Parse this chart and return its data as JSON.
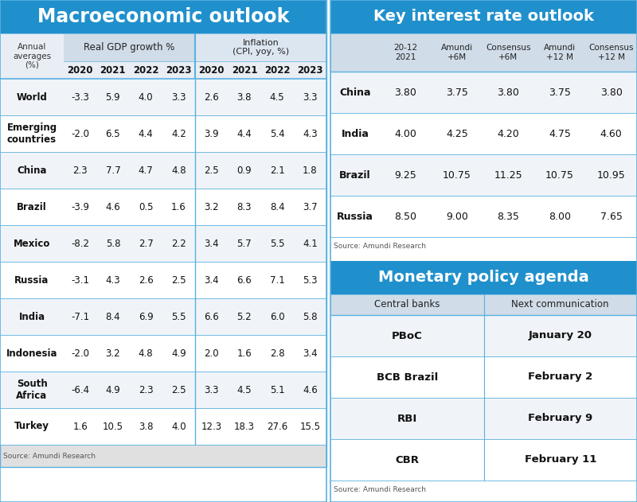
{
  "title_left": "Macroeconomic outlook",
  "title_right": "Key interest rate outlook",
  "monetary_title": "Monetary policy agenda",
  "title_bg": "#2090cc",
  "title_text_color": "#ffffff",
  "header_bg": "#d0dce8",
  "row_bg_odd": "#f0f4f8",
  "row_bg_even": "#ffffff",
  "border_color": "#5ab0e0",
  "sep_color": "#5ab0e0",
  "text_dark": "#111111",
  "text_gray": "#444444",
  "source_color": "#555555",
  "macro_rows": [
    [
      "World",
      "-3.3",
      "5.9",
      "4.0",
      "3.3",
      "2.6",
      "3.8",
      "4.5",
      "3.3"
    ],
    [
      "Emerging\ncountries",
      "-2.0",
      "6.5",
      "4.4",
      "4.2",
      "3.9",
      "4.4",
      "5.4",
      "4.3"
    ],
    [
      "China",
      "2.3",
      "7.7",
      "4.7",
      "4.8",
      "2.5",
      "0.9",
      "2.1",
      "1.8"
    ],
    [
      "Brazil",
      "-3.9",
      "4.6",
      "0.5",
      "1.6",
      "3.2",
      "8.3",
      "8.4",
      "3.7"
    ],
    [
      "Mexico",
      "-8.2",
      "5.8",
      "2.7",
      "2.2",
      "3.4",
      "5.7",
      "5.5",
      "4.1"
    ],
    [
      "Russia",
      "-3.1",
      "4.3",
      "2.6",
      "2.5",
      "3.4",
      "6.6",
      "7.1",
      "5.3"
    ],
    [
      "India",
      "-7.1",
      "8.4",
      "6.9",
      "5.5",
      "6.6",
      "5.2",
      "6.0",
      "5.8"
    ],
    [
      "Indonesia",
      "-2.0",
      "3.2",
      "4.8",
      "4.9",
      "2.0",
      "1.6",
      "2.8",
      "3.4"
    ],
    [
      "South\nAfrica",
      "-6.4",
      "4.9",
      "2.3",
      "2.5",
      "3.3",
      "4.5",
      "5.1",
      "4.6"
    ],
    [
      "Turkey",
      "1.6",
      "10.5",
      "3.8",
      "4.0",
      "12.3",
      "18.3",
      "27.6",
      "15.5"
    ]
  ],
  "rate_rows": [
    [
      "China",
      "3.80",
      "3.75",
      "3.80",
      "3.75",
      "3.80"
    ],
    [
      "India",
      "4.00",
      "4.25",
      "4.20",
      "4.75",
      "4.60"
    ],
    [
      "Brazil",
      "9.25",
      "10.75",
      "11.25",
      "10.75",
      "10.95"
    ],
    [
      "Russia",
      "8.50",
      "9.00",
      "8.35",
      "8.00",
      "7.65"
    ]
  ],
  "monetary_rows": [
    [
      "PBoC",
      "January 20"
    ],
    [
      "BCB Brazil",
      "February 2"
    ],
    [
      "RBI",
      "February 9"
    ],
    [
      "CBR",
      "February 11"
    ]
  ],
  "source_text": "Source: Amundi Research"
}
